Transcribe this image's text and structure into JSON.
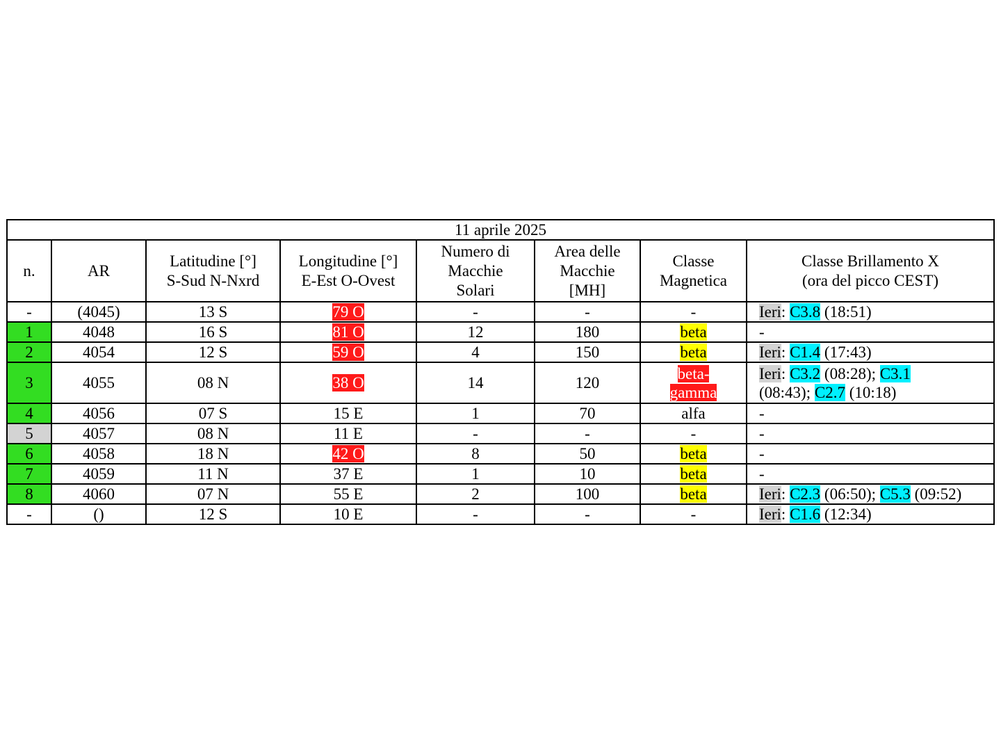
{
  "title": "11 aprile 2025",
  "headers": {
    "n": "n.",
    "ar": "AR",
    "lat_line1": "Latitudine [°]",
    "lat_line2": "S-Sud N-Nxrd",
    "lon_line1": "Longitudine [°]",
    "lon_line2": "E-Est O-Ovest",
    "spots_line1": "Numero di",
    "spots_line2": "Macchie",
    "spots_line3": "Solari",
    "area_line1": "Area delle",
    "area_line2": "Macchie",
    "area_line3": "[MH]",
    "mag_line1": "Classe",
    "mag_line2": "Magnetica",
    "flare_line1": "Classe Brillamento X",
    "flare_line2": "(ora del picco CEST)"
  },
  "rows": [
    {
      "n": "-",
      "ar": "(4045)",
      "lat": "13 S",
      "lon": "79 O",
      "spots": "-",
      "area": "-",
      "mag": "-",
      "flare": {
        "prefix": "Ieri",
        "sep": ": ",
        "c1": "C3.8",
        "t1": " (18:51)"
      }
    },
    {
      "n": "1",
      "ar": "4048",
      "lat": "16 S",
      "lon": "81 O",
      "spots": "12",
      "area": "180",
      "mag": "beta",
      "flare": {
        "text": "-"
      }
    },
    {
      "n": "2",
      "ar": "4054",
      "lat": "12 S",
      "lon": "59 O",
      "spots": "4",
      "area": "150",
      "mag": "beta",
      "flare": {
        "prefix": "Ieri",
        "sep": ": ",
        "c1": "C1.4",
        "t1": " (17:43)"
      }
    },
    {
      "n": "3",
      "ar": "4055",
      "lat": "08 N",
      "lon": "38 O",
      "spots": "14",
      "area": "120",
      "mag_line1": "beta-",
      "mag_line2": "gamma",
      "flare": {
        "prefix": "Ieri",
        "sep": ": ",
        "c1": "C3.2",
        "t1": " (08:28); ",
        "c2": "C3.1",
        "t2": "(08:43); ",
        "c3": "C2.7",
        "t3": " (10:18)"
      }
    },
    {
      "n": "4",
      "ar": "4056",
      "lat": "07 S",
      "lon": "15 E",
      "spots": "1",
      "area": "70",
      "mag": "alfa",
      "flare": {
        "text": "-"
      }
    },
    {
      "n": "5",
      "ar": "4057",
      "lat": "08 N",
      "lon": "11 E",
      "spots": "-",
      "area": "-",
      "mag": "-",
      "flare": {
        "text": "-"
      }
    },
    {
      "n": "6",
      "ar": "4058",
      "lat": "18 N",
      "lon": "42 O",
      "spots": "8",
      "area": "50",
      "mag": "beta",
      "flare": {
        "text": "-"
      }
    },
    {
      "n": "7",
      "ar": "4059",
      "lat": "11 N",
      "lon": "37 E",
      "spots": "1",
      "area": "10",
      "mag": "beta",
      "flare": {
        "text": "-"
      }
    },
    {
      "n": "8",
      "ar": "4060",
      "lat": "07 N",
      "lon": "55 E",
      "spots": "2",
      "area": "100",
      "mag": "beta",
      "flare": {
        "prefix": "Ieri",
        "sep": ": ",
        "c1": "C2.3",
        "t1": " (06:50); ",
        "c2": "C5.3",
        "t2": " (09:52)"
      }
    },
    {
      "n": "-",
      "ar": "()",
      "lat": "12 S",
      "lon": "10 E",
      "spots": "-",
      "area": "-",
      "mag": "-",
      "flare": {
        "prefix": "Ieri",
        "sep": ": ",
        "c1": "C1.6",
        "t1": " (12:34)"
      }
    }
  ],
  "colors": {
    "number_green": "#33dd22",
    "number_grey": "#d3d3d3",
    "longitude_west_highlight": "#ff1a1a",
    "magnetic_beta_highlight": "#ffff00",
    "magnetic_beta_gamma_highlight": "#ff1a1a",
    "flare_class_highlight": "#00f0ff",
    "ieri_highlight": "#d3d3d3"
  }
}
